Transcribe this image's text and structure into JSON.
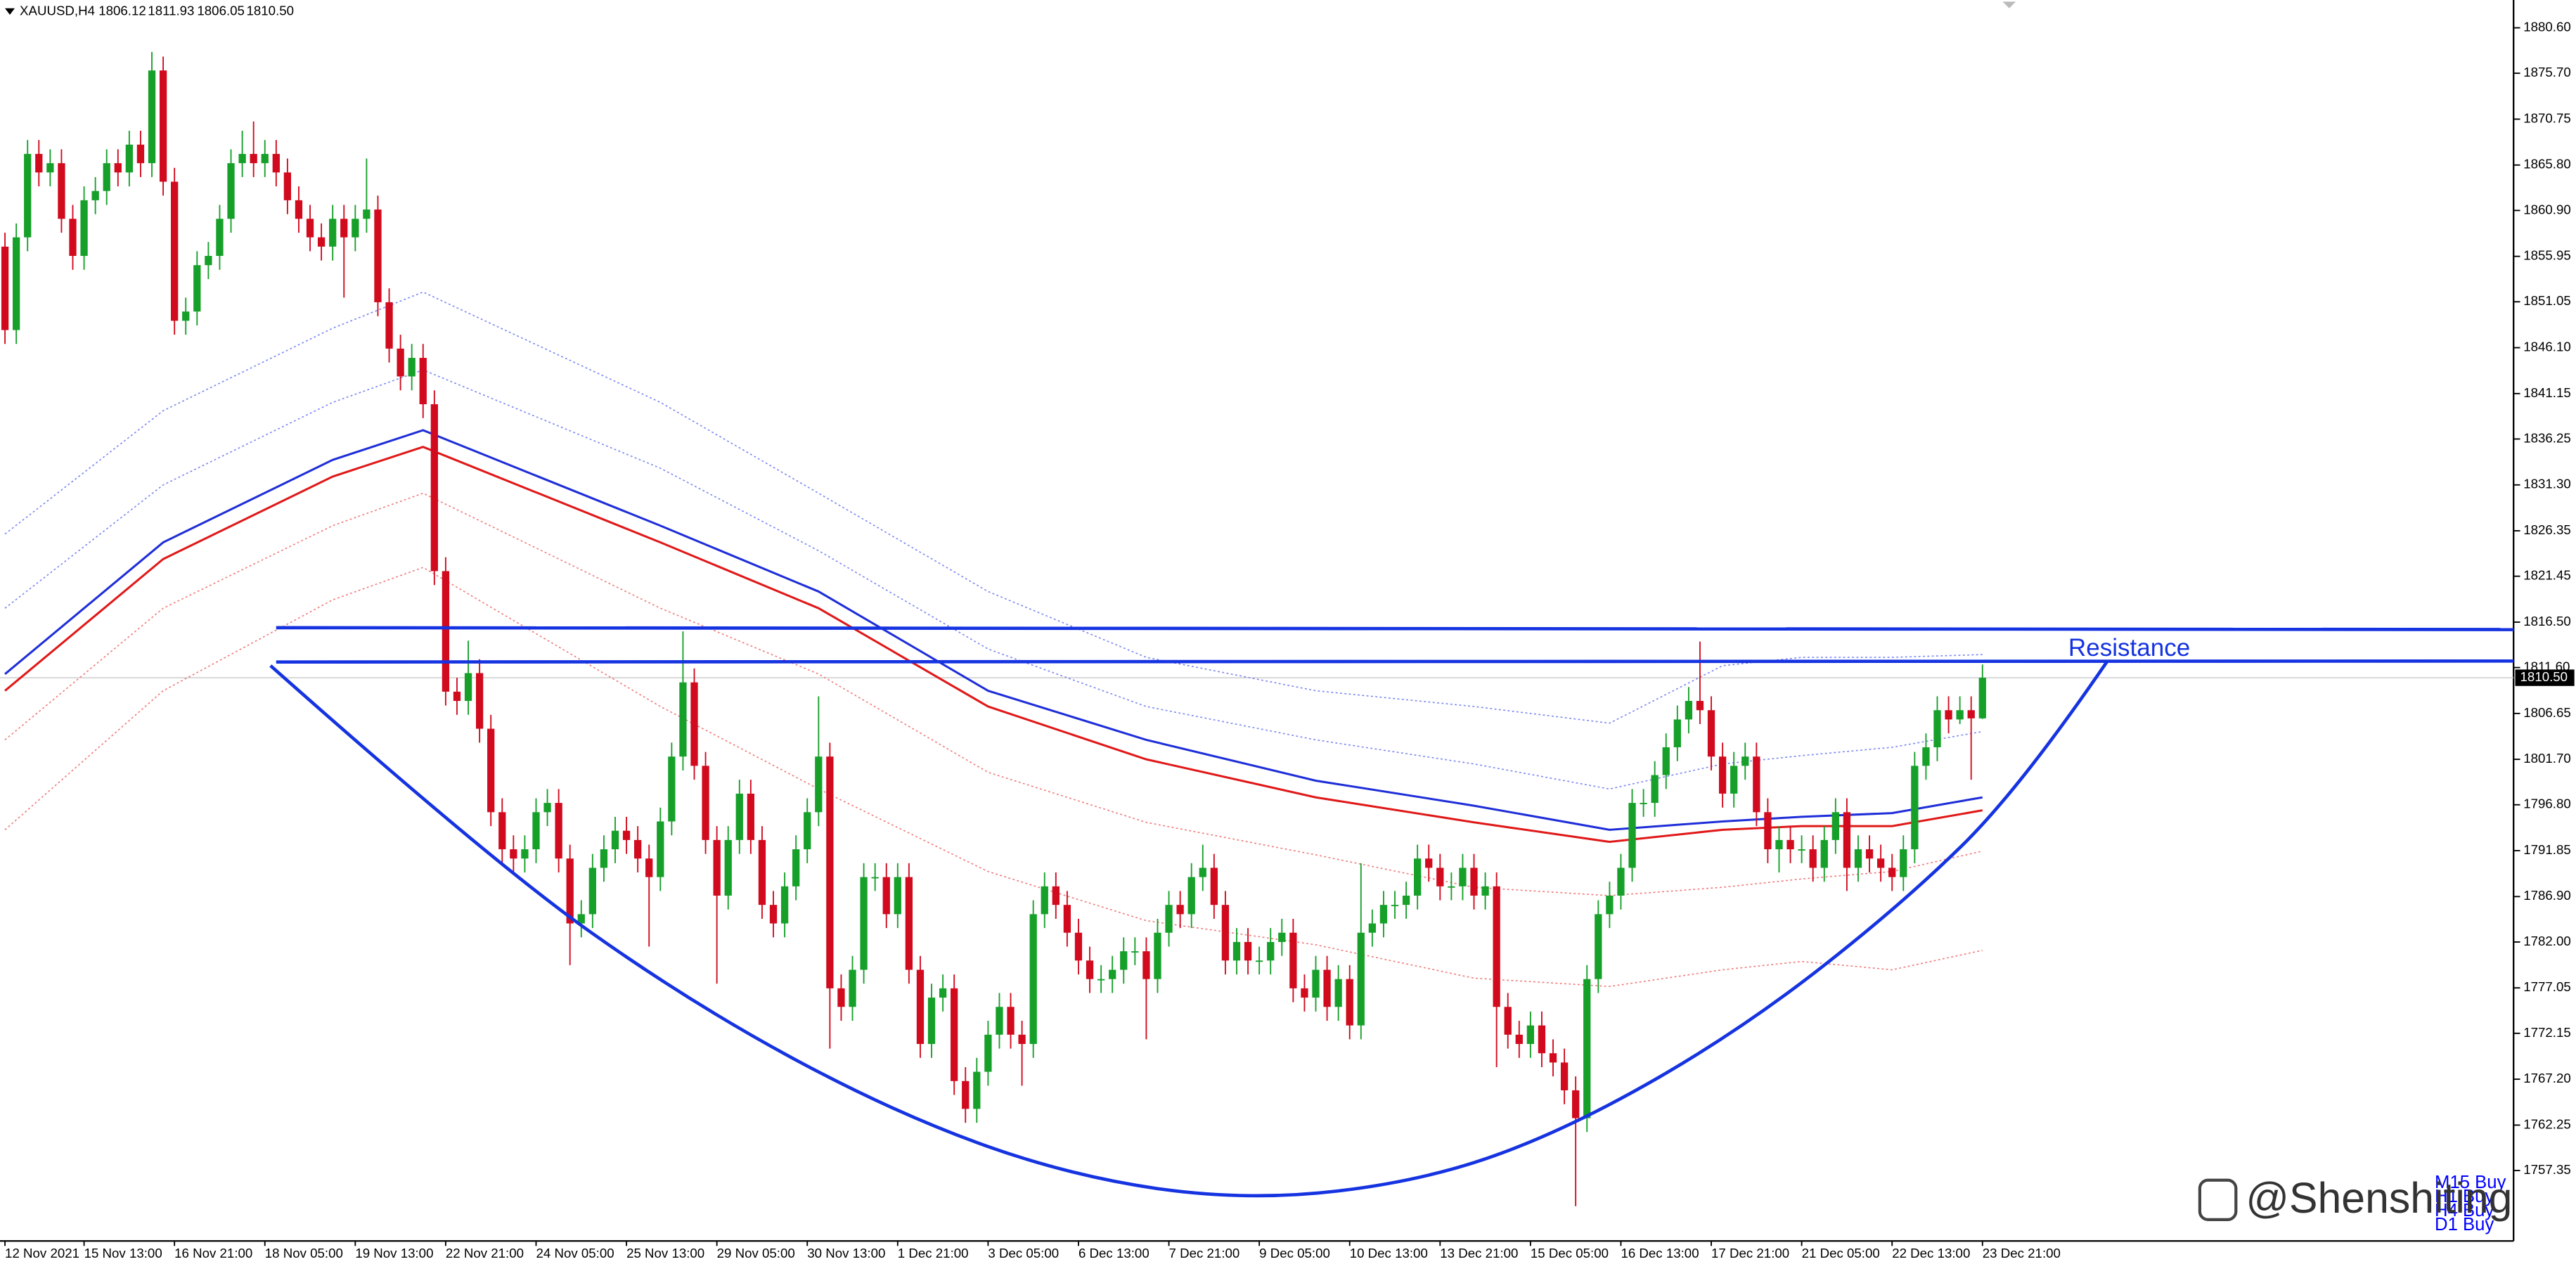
{
  "chart_data": {
    "type": "candlestick",
    "header_symbol": "XAUUSD,H4",
    "header_values": [
      "1806.12",
      "1811.93",
      "1806.05",
      "1810.50"
    ],
    "categories": [
      "12 Nov 2021",
      null,
      null,
      null,
      null,
      null,
      null,
      "15 Nov 13:00",
      null,
      null,
      null,
      null,
      null,
      null,
      null,
      "16 Nov 21:00",
      null,
      null,
      null,
      null,
      null,
      null,
      null,
      "18 Nov 05:00",
      null,
      null,
      null,
      null,
      null,
      null,
      null,
      "19 Nov 13:00",
      null,
      null,
      null,
      null,
      null,
      null,
      null,
      "22 Nov 21:00",
      null,
      null,
      null,
      null,
      null,
      null,
      null,
      "24 Nov 05:00",
      null,
      null,
      null,
      null,
      null,
      null,
      null,
      "25 Nov 13:00",
      null,
      null,
      null,
      null,
      null,
      null,
      null,
      "29 Nov 05:00",
      null,
      null,
      null,
      null,
      null,
      null,
      null,
      "30 Nov 13:00",
      null,
      null,
      null,
      null,
      null,
      null,
      null,
      "1 Dec 21:00",
      null,
      null,
      null,
      null,
      null,
      null,
      null,
      "3 Dec 05:00",
      null,
      null,
      null,
      null,
      null,
      null,
      null,
      "6 Dec 13:00",
      null,
      null,
      null,
      null,
      null,
      null,
      null,
      "7 Dec 21:00",
      null,
      null,
      null,
      null,
      null,
      null,
      null,
      "9 Dec 05:00",
      null,
      null,
      null,
      null,
      null,
      null,
      null,
      "10 Dec 13:00",
      null,
      null,
      null,
      null,
      null,
      null,
      null,
      "13 Dec 21:00",
      null,
      null,
      null,
      null,
      null,
      null,
      null,
      "15 Dec 05:00",
      null,
      null,
      null,
      null,
      null,
      null,
      null,
      "16 Dec 13:00",
      null,
      null,
      null,
      null,
      null,
      null,
      null,
      "17 Dec 21:00",
      null,
      null,
      null,
      null,
      null,
      null,
      null,
      "21 Dec 05:00",
      null,
      null,
      null,
      null,
      null,
      null,
      null,
      "22 Dec 13:00",
      null,
      null,
      null,
      null,
      null,
      null,
      null,
      "23 Dec 21:00"
    ],
    "open": [
      1857,
      1848,
      1858,
      1867,
      1865,
      1866,
      1860,
      1856,
      1862,
      1863,
      1866,
      1865,
      1868,
      1866,
      1876,
      1864,
      1849,
      1850,
      1855,
      1856,
      1860,
      1866,
      1867,
      1866,
      1867,
      1865,
      1862,
      1860,
      1858,
      1857,
      1860,
      1858,
      1860,
      1861,
      1851,
      1846,
      1843,
      1845,
      1840,
      1822,
      1809,
      1808,
      1811,
      1805,
      1796,
      1792,
      1791,
      1792,
      1796,
      1797,
      1791,
      1784,
      1785,
      1790,
      1792,
      1794,
      1793,
      1791,
      1789,
      1795,
      1802,
      1810,
      1801,
      1793,
      1787,
      1793,
      1798,
      1793,
      1786,
      1784,
      1788,
      1792,
      1796,
      1802,
      1777,
      1775,
      1779,
      1789,
      1789,
      1785,
      1789,
      1779,
      1771,
      1776,
      1777,
      1767,
      1764,
      1768,
      1772,
      1775,
      1772,
      1771,
      1785,
      1788,
      1786,
      1783,
      1780,
      1778,
      1778,
      1779,
      1781,
      1781,
      1778,
      1783,
      1786,
      1785,
      1789,
      1790,
      1786,
      1780,
      1782,
      1780,
      1780,
      1782,
      1783,
      1777,
      1776,
      1779,
      1775,
      1778,
      1773,
      1783,
      1784,
      1786,
      1786,
      1787,
      1791,
      1790,
      1788,
      1788,
      1790,
      1787,
      1788,
      1775,
      1772,
      1771,
      1773,
      1770,
      1769,
      1766,
      1763,
      1778,
      1785,
      1787,
      1790,
      1797,
      1797,
      1800,
      1803,
      1806,
      1808,
      1807,
      1802,
      1798,
      1801,
      1802,
      1796,
      1792,
      1793,
      1792,
      1792,
      1790,
      1793,
      1796,
      1790,
      1792,
      1791,
      1790,
      1789,
      1792,
      1801,
      1803,
      1807,
      1806,
      1807,
      1806.12
    ],
    "high": [
      1858.5,
      1859.5,
      1868.5,
      1868.5,
      1867.5,
      1867.5,
      1861.5,
      1863.5,
      1864.5,
      1867.5,
      1867.5,
      1869.5,
      1869.5,
      1878,
      1877.5,
      1865.5,
      1851.5,
      1856.5,
      1857.5,
      1861.5,
      1867.5,
      1869.5,
      1870.5,
      1868.5,
      1868.5,
      1866.5,
      1863.5,
      1861.5,
      1859.5,
      1861.5,
      1861.5,
      1861.5,
      1866.5,
      1862.5,
      1852.5,
      1847.5,
      1846.5,
      1846.5,
      1841.5,
      1823.5,
      1810.5,
      1814.5,
      1812.5,
      1806.5,
      1797.5,
      1793.5,
      1793.5,
      1797.5,
      1798.5,
      1798.5,
      1792.5,
      1786.5,
      1791.5,
      1793.5,
      1795.5,
      1795.5,
      1794.5,
      1792.5,
      1796.5,
      1803.5,
      1815.5,
      1811.5,
      1802.5,
      1794.5,
      1794.5,
      1799.5,
      1799.5,
      1794.5,
      1787.5,
      1789.5,
      1793.5,
      1797.5,
      1808.5,
      1803.5,
      1778.5,
      1780.5,
      1790.5,
      1790.5,
      1790.5,
      1790.5,
      1790.5,
      1780.5,
      1777.5,
      1778.5,
      1778.5,
      1768.5,
      1769.5,
      1773.5,
      1776.5,
      1776.5,
      1773.5,
      1786.5,
      1789.5,
      1789.5,
      1787.5,
      1784.5,
      1781.5,
      1779.5,
      1780.5,
      1782.5,
      1782.5,
      1782.5,
      1784.5,
      1787.5,
      1787.5,
      1790.5,
      1792.5,
      1791.5,
      1787.5,
      1783.5,
      1783.5,
      1781.5,
      1783.5,
      1784.5,
      1784.5,
      1778.5,
      1780.5,
      1780.5,
      1779.5,
      1779.5,
      1790.5,
      1785.5,
      1787.5,
      1787.5,
      1788.5,
      1792.5,
      1792.5,
      1791.5,
      1789.5,
      1791.5,
      1791.5,
      1789.5,
      1789.5,
      1776.5,
      1773.5,
      1774.5,
      1774.5,
      1771.5,
      1770.5,
      1767.5,
      1779.5,
      1786.5,
      1788.5,
      1791.5,
      1798.5,
      1798.5,
      1801.5,
      1804.5,
      1807.5,
      1809.5,
      1814.4,
      1808.5,
      1803.5,
      1802.5,
      1803.5,
      1803.5,
      1797.5,
      1794.5,
      1794.5,
      1793.5,
      1793.5,
      1794.5,
      1797.5,
      1797.5,
      1793.5,
      1793.5,
      1792.5,
      1791.5,
      1793.5,
      1802.5,
      1804.5,
      1808.5,
      1808.5,
      1808.5,
      1808.5,
      1811.93
    ],
    "low": [
      1846.5,
      1846.5,
      1856.5,
      1863.5,
      1863.5,
      1858.5,
      1854.5,
      1854.5,
      1860.5,
      1861.5,
      1863.5,
      1863.5,
      1864.5,
      1864.5,
      1862.5,
      1847.5,
      1847.5,
      1848.5,
      1853.5,
      1854.5,
      1858.5,
      1864.5,
      1864.5,
      1864.5,
      1863.5,
      1860.5,
      1858.5,
      1856.5,
      1855.5,
      1855.5,
      1851.5,
      1856.5,
      1858.5,
      1849.5,
      1844.5,
      1841.5,
      1841.5,
      1838.5,
      1820.5,
      1807.5,
      1806.5,
      1806.5,
      1803.5,
      1794.5,
      1790.5,
      1789.5,
      1789.5,
      1790.5,
      1794.5,
      1789.5,
      1779.5,
      1782.5,
      1783.5,
      1788.5,
      1790.5,
      1791.5,
      1789.5,
      1781.5,
      1787.5,
      1793.5,
      1800.5,
      1799.5,
      1791.5,
      1777.5,
      1785.5,
      1791.5,
      1791.5,
      1784.5,
      1782.5,
      1782.5,
      1786.5,
      1790.5,
      1794.5,
      1770.5,
      1773.5,
      1773.5,
      1777.5,
      1787.5,
      1783.5,
      1783.5,
      1777.5,
      1769.5,
      1769.5,
      1774.5,
      1765.5,
      1762.5,
      1762.5,
      1766.5,
      1770.5,
      1770.5,
      1766.5,
      1769.5,
      1783.5,
      1784.5,
      1781.5,
      1778.5,
      1776.5,
      1776.5,
      1776.5,
      1777.5,
      1779.5,
      1771.5,
      1776.5,
      1781.5,
      1783.5,
      1783.5,
      1787.5,
      1784.5,
      1778.5,
      1778.5,
      1778.5,
      1778.5,
      1778.5,
      1780.5,
      1775.5,
      1774.5,
      1774.5,
      1773.5,
      1773.5,
      1771.5,
      1771.5,
      1781.5,
      1782.5,
      1784.5,
      1784.5,
      1785.5,
      1788.5,
      1786.5,
      1786.5,
      1786.5,
      1785.5,
      1785.5,
      1768.5,
      1770.5,
      1769.5,
      1769.5,
      1768.5,
      1767.5,
      1764.5,
      1753.5,
      1761.5,
      1776.5,
      1783.5,
      1785.5,
      1788.5,
      1795.5,
      1795.5,
      1798.5,
      1801.5,
      1804.5,
      1805.5,
      1800.5,
      1796.5,
      1796.5,
      1799.5,
      1794.5,
      1790.5,
      1789.5,
      1790.5,
      1790.5,
      1788.5,
      1788.5,
      1791.5,
      1787.5,
      1788.5,
      1789.5,
      1788.5,
      1787.5,
      1787.5,
      1790.5,
      1799.5,
      1801.5,
      1804.5,
      1805.5,
      1799.5,
      1806.05
    ],
    "close": [
      1848,
      1858,
      1867,
      1865,
      1866,
      1860,
      1856,
      1862,
      1863,
      1866,
      1865,
      1868,
      1866,
      1876,
      1864,
      1849,
      1850,
      1855,
      1856,
      1860,
      1866,
      1867,
      1866,
      1867,
      1865,
      1862,
      1860,
      1858,
      1857,
      1860,
      1858,
      1860,
      1861,
      1851,
      1846,
      1843,
      1845,
      1840,
      1822,
      1809,
      1808,
      1811,
      1805,
      1796,
      1792,
      1791,
      1792,
      1796,
      1797,
      1791,
      1784,
      1785,
      1790,
      1792,
      1794,
      1793,
      1791,
      1789,
      1795,
      1802,
      1810,
      1801,
      1793,
      1787,
      1793,
      1798,
      1793,
      1786,
      1784,
      1788,
      1792,
      1796,
      1802,
      1777,
      1775,
      1779,
      1789,
      1789,
      1785,
      1789,
      1779,
      1771,
      1776,
      1777,
      1767,
      1764,
      1768,
      1772,
      1775,
      1772,
      1771,
      1785,
      1788,
      1786,
      1783,
      1780,
      1778,
      1778,
      1779,
      1781,
      1781,
      1778,
      1783,
      1786,
      1785,
      1789,
      1790,
      1786,
      1780,
      1782,
      1780,
      1780,
      1782,
      1783,
      1777,
      1776,
      1779,
      1775,
      1778,
      1773,
      1783,
      1784,
      1786,
      1786,
      1787,
      1791,
      1790,
      1788,
      1788,
      1790,
      1787,
      1788,
      1775,
      1772,
      1771,
      1773,
      1770,
      1769,
      1766,
      1763,
      1778,
      1785,
      1787,
      1790,
      1797,
      1797,
      1800,
      1803,
      1806,
      1808,
      1807,
      1802,
      1798,
      1801,
      1802,
      1796,
      1792,
      1793,
      1792,
      1792,
      1790,
      1793,
      1796,
      1790,
      1792,
      1791,
      1790,
      1789,
      1792,
      1801,
      1803,
      1807,
      1806,
      1807,
      1806.12,
      1810.5
    ],
    "up_color": "#16a02a",
    "down_color": "#d10a1e",
    "xlim": [
      -0.44,
      222.0
    ],
    "ylim": [
      1749.75,
      1883.6
    ],
    "yticks": [
      {
        "value": 1880.6,
        "label": "1880.60"
      },
      {
        "value": 1875.7,
        "label": "1875.70"
      },
      {
        "value": 1870.75,
        "label": "1870.75"
      },
      {
        "value": 1865.8,
        "label": "1865.80"
      },
      {
        "value": 1860.9,
        "label": "1860.90"
      },
      {
        "value": 1855.95,
        "label": "1855.95"
      },
      {
        "value": 1851.05,
        "label": "1851.05"
      },
      {
        "value": 1846.1,
        "label": "1846.10"
      },
      {
        "value": 1841.15,
        "label": "1841.15"
      },
      {
        "value": 1836.25,
        "label": "1836.25"
      },
      {
        "value": 1831.3,
        "label": "1831.30"
      },
      {
        "value": 1826.35,
        "label": "1826.35"
      },
      {
        "value": 1821.45,
        "label": "1821.45"
      },
      {
        "value": 1816.5,
        "label": "1816.50"
      },
      {
        "value": 1811.6,
        "label": "1811.60"
      },
      {
        "value": 1806.65,
        "label": "1806.65"
      },
      {
        "value": 1801.7,
        "label": "1801.70"
      },
      {
        "value": 1796.8,
        "label": "1796.80"
      },
      {
        "value": 1791.85,
        "label": "1791.85"
      },
      {
        "value": 1786.9,
        "label": "1786.90"
      },
      {
        "value": 1782.0,
        "label": "1782.00"
      },
      {
        "value": 1777.05,
        "label": "1777.05"
      },
      {
        "value": 1772.15,
        "label": "1772.15"
      },
      {
        "value": 1767.2,
        "label": "1767.20"
      },
      {
        "value": 1762.25,
        "label": "1762.25"
      },
      {
        "value": 1757.35,
        "label": "1757.35"
      }
    ],
    "current_price": {
      "value": 1810.5,
      "label": "1810.50"
    },
    "overlays": {
      "x": [
        0,
        14,
        29,
        37,
        58,
        72,
        87,
        101,
        116,
        130,
        142,
        152,
        159,
        167,
        175
      ],
      "series": [
        {
          "color": "#7a86f0",
          "style": "dotted",
          "values": [
            1826.0,
            1839.3,
            1848.2,
            1852.1,
            1840.2,
            1830.4,
            1819.8,
            1812.7,
            1809.1,
            1807.4,
            1805.6,
            1811.8,
            1812.7,
            1812.7,
            1813.0
          ]
        },
        {
          "color": "#7a86f0",
          "style": "dotted",
          "values": [
            1818.0,
            1831.3,
            1840.2,
            1843.7,
            1833.1,
            1824.2,
            1813.6,
            1807.4,
            1803.8,
            1801.2,
            1798.5,
            1801.2,
            1802.1,
            1803.0,
            1804.7
          ]
        },
        {
          "color": "#1e2ed8",
          "style": "solid",
          "values": [
            1810.9,
            1825.1,
            1834.0,
            1837.2,
            1826.9,
            1819.8,
            1809.1,
            1803.8,
            1799.4,
            1796.7,
            1794.1,
            1795.0,
            1795.5,
            1795.9,
            1797.6
          ]
        },
        {
          "color": "#e01818",
          "style": "solid",
          "values": [
            1809.1,
            1823.3,
            1832.2,
            1835.4,
            1825.1,
            1818.0,
            1807.4,
            1801.7,
            1797.6,
            1794.9,
            1792.8,
            1794.1,
            1794.5,
            1794.5,
            1796.2
          ]
        },
        {
          "color": "#f07a7a",
          "style": "dotted",
          "values": [
            1803.8,
            1818.0,
            1826.9,
            1830.4,
            1818.0,
            1810.9,
            1800.3,
            1794.9,
            1791.4,
            1787.9,
            1787.0,
            1787.9,
            1788.8,
            1789.6,
            1791.8
          ]
        },
        {
          "color": "#f07a7a",
          "style": "dotted",
          "values": [
            1794.1,
            1809.1,
            1818.9,
            1822.4,
            1807.4,
            1798.5,
            1789.6,
            1784.3,
            1781.7,
            1778.1,
            1777.2,
            1779.0,
            1779.9,
            1779.0,
            1781.1
          ]
        }
      ]
    },
    "trendlines": [
      {
        "color": "#1533e0",
        "x": [
          24,
          222
        ],
        "y": [
          1815.9,
          1815.7
        ]
      },
      {
        "color": "#1533e0",
        "x": [
          24,
          222
        ],
        "y": [
          1812.2,
          1812.3
        ]
      }
    ],
    "cup": {
      "color": "#1533e0",
      "x": [
        23.5,
        43.2,
        60.6,
        78.1,
        94.0,
        110,
        126,
        139,
        154,
        168,
        178.3,
        186
      ],
      "y": [
        1811.8,
        1790.5,
        1775.5,
        1763.9,
        1756.8,
        1754.0,
        1756.3,
        1762.2,
        1772.8,
        1786.2,
        1798.5,
        1812.2
      ]
    },
    "annotation": "Resistance",
    "signals": [
      "M15 Buy",
      "H1 Buy",
      "H4 Buy",
      "D1 Buy"
    ],
    "watermark": "@Shenshiting"
  }
}
